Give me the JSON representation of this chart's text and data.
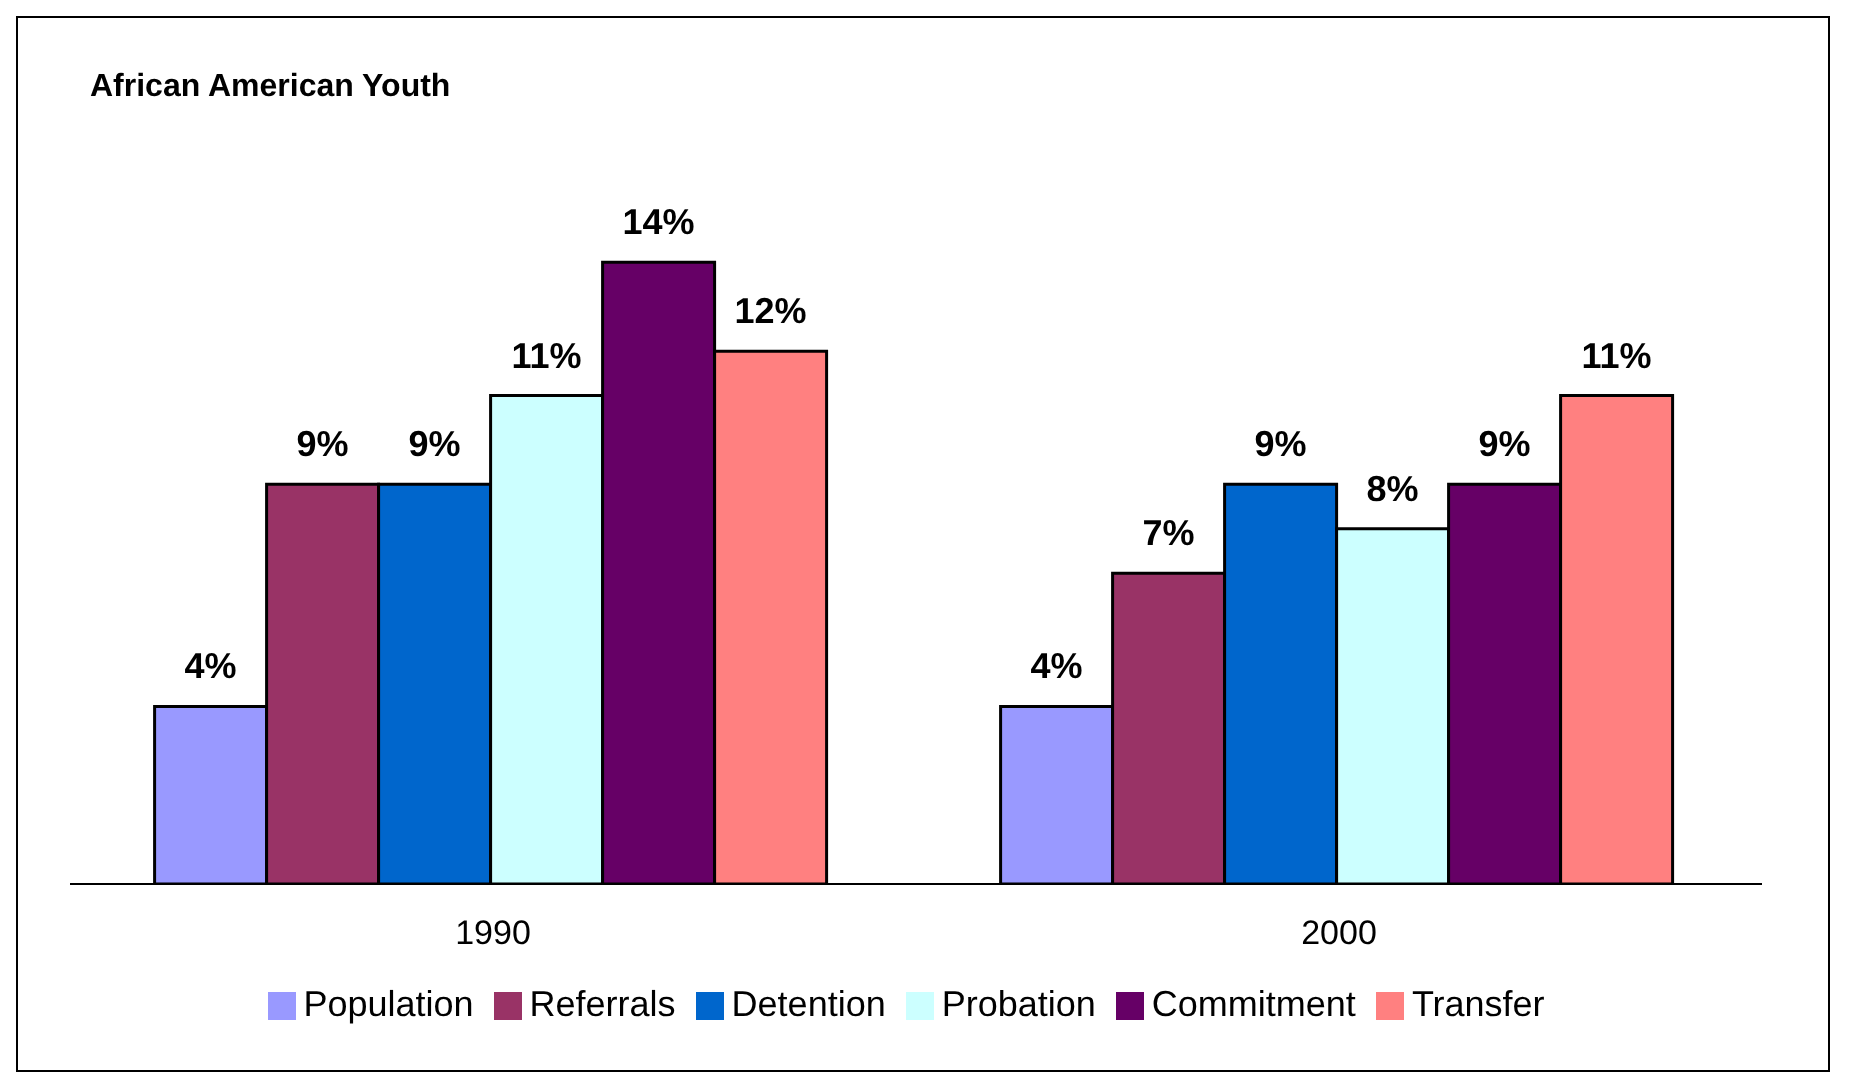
{
  "chart_data": {
    "type": "bar",
    "title": "African American Youth",
    "categories": [
      "1990",
      "2000"
    ],
    "series": [
      {
        "name": "Population",
        "color": "#9999ff",
        "values": [
          4,
          4
        ],
        "value_labels": [
          "4%",
          "4%"
        ]
      },
      {
        "name": "Referrals",
        "color": "#993366",
        "values": [
          9,
          7
        ],
        "value_labels": [
          "9%",
          "7%"
        ]
      },
      {
        "name": "Detention",
        "color": "#0066cc",
        "values": [
          9,
          9
        ],
        "value_labels": [
          "9%",
          "9%"
        ]
      },
      {
        "name": "Probation",
        "color": "#ccffff",
        "values": [
          11,
          8
        ],
        "value_labels": [
          "11%",
          "8%"
        ]
      },
      {
        "name": "Commitment",
        "color": "#660066",
        "values": [
          14,
          9
        ],
        "value_labels": [
          "14%",
          "9%"
        ]
      },
      {
        "name": "Transfer",
        "color": "#ff8080",
        "values": [
          12,
          11
        ],
        "value_labels": [
          "12%",
          "11%"
        ]
      }
    ],
    "legend": "bottom",
    "grid": false
  }
}
